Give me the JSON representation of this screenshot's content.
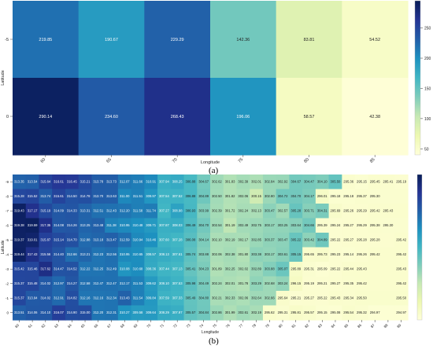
{
  "panel_labels": [
    "(a)",
    "(b)"
  ],
  "chart_data": [
    {
      "type": "heatmap",
      "title": "",
      "xlabel": "Longitude",
      "ylabel": "Latitude",
      "x_categories": [
        "60",
        "65",
        "70",
        "75",
        "80",
        "85"
      ],
      "y_categories": [
        "-5",
        "0"
      ],
      "values": [
        [
          219.85,
          190.67,
          229.29,
          142.36,
          83.81,
          54.52
        ],
        [
          290.14,
          234.6,
          268.43,
          196.06,
          58.57,
          42.38
        ]
      ],
      "value_labels": [
        [
          "219.85",
          "190.67",
          "229.29",
          "142.36",
          "83.81",
          "54.52"
        ],
        [
          "290.14",
          "234.60",
          "268.43",
          "196.06",
          "58.57",
          "42.38"
        ]
      ],
      "color_range": [
        40,
        295
      ],
      "colorbar_ticks": [
        "50",
        "100",
        "150",
        "200",
        "250"
      ],
      "colormap": [
        "#ffffd9",
        "#edf8b1",
        "#c7e9b4",
        "#7fcdbb",
        "#41b6c4",
        "#1d91c0",
        "#225ea8",
        "#253494",
        "#081d58"
      ]
    },
    {
      "type": "heatmap",
      "title": "",
      "xlabel": "Longitude",
      "ylabel": "Latitude",
      "x_categories": [
        "60",
        "61",
        "62",
        "63",
        "64",
        "65",
        "66",
        "67",
        "68",
        "69",
        "70",
        "71",
        "72",
        "73",
        "74",
        "75",
        "76",
        "77",
        "78",
        "79",
        "80",
        "81",
        "82",
        "83",
        "84",
        "85",
        "86",
        "87",
        "88",
        "89"
      ],
      "y_categories": [
        "-9",
        "-8",
        "-7",
        "-6",
        "-5",
        "-4",
        "-3",
        "-2",
        "-1",
        "0"
      ],
      "values": [
        [
          313.35,
          313.54,
          315.64,
          316.61,
          316.45,
          315.21,
          313.78,
          313.73,
          312.07,
          311.66,
          310.91,
          307.94,
          308.25,
          306.88,
          304.67,
          302.62,
          301.83,
          302.39,
          302.01,
          302.84,
          302.92,
          304.67,
          304.47,
          304.1,
          305.5,
          295.36,
          295.15,
          295.45,
          295.41,
          295.19
        ],
        [
          315.28,
          315.52,
          313.74,
          315.61,
          314.5,
          314.78,
          313.7,
          313.63,
          311.0,
          311.51,
          309.97,
          307.54,
          307.52,
          306.88,
          304.89,
          302.5,
          301.82,
          302.06,
          300.15,
          302.8,
          304.72,
          304.7,
          304.17,
          296.01,
          295.18,
          295.18,
          295.37,
          295.3,
          295.3,
          295.3
        ],
        [
          319.43,
          317.17,
          315.19,
          314.09,
          314.33,
          313.31,
          312.51,
          312.43,
          312.2,
          311.58,
          311.74,
          307.27,
          308.98,
          306.93,
          303.99,
          302.39,
          301.72,
          302.24,
          302.13,
          303.47,
          302.57,
          305.28,
          303.71,
          304.31,
          295.69,
          295.26,
          295.29,
          295.42,
          295.43,
          295.42
        ],
        [
          319.38,
          319.59,
          317.35,
          314.08,
          314.26,
          313.25,
          313.48,
          311.38,
          310.95,
          310.48,
          309.71,
          307.87,
          308.03,
          306.49,
          304.7,
          302.54,
          301.19,
          302.49,
          302.75,
          303.17,
          303.25,
          303.64,
          304.66,
          295.39,
          295.24,
          295.27,
          295.29,
          295.38,
          295.3,
          295.3
        ],
        [
          319.37,
          319.01,
          315.87,
          315.14,
          314.7,
          312.88,
          313.18,
          313.47,
          312.59,
          310.94,
          310.46,
          307.6,
          307.28,
          306.08,
          304.14,
          302.1,
          302.19,
          302.17,
          302.85,
          303.37,
          303.47,
          305.22,
          303.42,
          304.89,
          295.22,
          295.27,
          295.28,
          295.28,
          295.28,
          295.42
        ],
        [
          319.44,
          317.43,
          315.56,
          314.4,
          312.66,
          313.21,
          312.23,
          312.56,
          310.95,
          310.65,
          308.57,
          308.13,
          307.61,
          305.74,
          303.88,
          302.06,
          302.38,
          301.8,
          303.38,
          303.17,
          303.61,
          305.15,
          295.65,
          295.73,
          295.23,
          295.14,
          295.26,
          295.42,
          295.42,
          295.42
        ],
        [
          315.42,
          315.46,
          317.62,
          314.47,
          314.52,
          312.22,
          312.25,
          312.49,
          310.08,
          310.68,
          308.36,
          307.44,
          307.13,
          305.41,
          304.23,
          301.89,
          302.25,
          302.02,
          302.89,
          303.88,
          305.07,
          295.89,
          295.31,
          295.09,
          295.22,
          295.44,
          295.43,
          295.43,
          295.43,
          295.43
        ],
        [
          315.37,
          315.48,
          314.02,
          312.97,
          314.27,
          312.58,
          312.47,
          312.47,
          312.17,
          311.53,
          309.62,
          308.1,
          307.53,
          305.98,
          304.49,
          302.24,
          302.01,
          301.78,
          303.29,
          302.68,
          303.24,
          296.15,
          295.19,
          295.21,
          295.27,
          295.35,
          295.42,
          295.42,
          295.42,
          295.42
        ],
        [
          315.37,
          313.94,
          314.02,
          312.91,
          314.82,
          312.16,
          312.16,
          312.34,
          313.43,
          311.54,
          309.84,
          307.59,
          307.33,
          305.49,
          304.8,
          302.21,
          302.33,
          302.06,
          302.64,
          302.66,
          295.64,
          295.21,
          295.27,
          295.22,
          295.43,
          295.34,
          295.5,
          295.5,
          295.5,
          295.5
        ],
        [
          313.51,
          314.06,
          314.1,
          316.07,
          314.9,
          315.0,
          312.2,
          312.31,
          310.27,
          309.58,
          309.64,
          308.29,
          307.97,
          305.57,
          304.84,
          302.86,
          301.99,
          302.61,
          302.19,
          295.62,
          295.31,
          295.81,
          295.57,
          295.15,
          295.08,
          295.54,
          295.32,
          294.97,
          294.97,
          294.97
        ]
      ],
      "value_labels": [
        [
          "313.35",
          "313.54",
          "315.64",
          "316.61",
          "316.45",
          "315.21",
          "313.78",
          "313.73",
          "312.07",
          "311.66",
          "310.91",
          "307.94",
          "308.25",
          "306.88",
          "304.67",
          "302.62",
          "301.83",
          "302.39",
          "302.01",
          "302.84",
          "302.92",
          "304.67",
          "304.47",
          "304.10",
          "305.50",
          "295.36",
          "295.15",
          "295.45",
          "295.41",
          "295.19"
        ],
        [
          "315.28",
          "315.52",
          "313.74",
          "315.61",
          "314.50",
          "314.78",
          "313.70",
          "313.63",
          "311.00",
          "311.51",
          "309.97",
          "307.54",
          "307.52",
          "306.88",
          "304.89",
          "302.50",
          "301.82",
          "302.06",
          "300.15",
          "302.80",
          "304.72",
          "304.70",
          "304.17",
          "296.01",
          "295.18",
          "295.18",
          "295.37",
          "295.30",
          "",
          ""
        ],
        [
          "319.43",
          "317.17",
          "315.19",
          "314.09",
          "314.33",
          "313.31",
          "312.51",
          "312.43",
          "312.20",
          "311.58",
          "311.74",
          "307.27",
          "308.98",
          "306.93",
          "303.99",
          "302.39",
          "301.72",
          "302.24",
          "302.13",
          "303.47",
          "302.57",
          "305.28",
          "303.71",
          "304.31",
          "295.69",
          "295.26",
          "295.29",
          "295.42",
          "295.43",
          ""
        ],
        [
          "319.38",
          "319.59",
          "317.35",
          "314.08",
          "314.26",
          "313.25",
          "313.48",
          "311.38",
          "310.95",
          "310.48",
          "309.71",
          "307.87",
          "308.03",
          "306.49",
          "304.70",
          "302.54",
          "301.19",
          "302.49",
          "302.75",
          "303.17",
          "303.25",
          "303.64",
          "304.66",
          "295.39",
          "295.24",
          "295.27",
          "295.29",
          "295.38",
          "295.30",
          ""
        ],
        [
          "319.37",
          "319.01",
          "315.87",
          "315.14",
          "314.70",
          "312.88",
          "313.18",
          "313.47",
          "312.59",
          "310.94",
          "310.46",
          "307.60",
          "307.28",
          "306.08",
          "304.14",
          "302.10",
          "302.19",
          "302.17",
          "302.85",
          "303.37",
          "303.47",
          "305.22",
          "303.42",
          "304.89",
          "295.22",
          "295.27",
          "295.28",
          "295.28",
          "",
          "295.42"
        ],
        [
          "319.44",
          "317.43",
          "315.56",
          "314.40",
          "312.66",
          "313.21",
          "312.23",
          "312.56",
          "310.95",
          "310.65",
          "308.57",
          "308.13",
          "307.61",
          "305.74",
          "303.88",
          "302.06",
          "302.38",
          "301.80",
          "303.38",
          "303.17",
          "303.61",
          "305.15",
          "295.65",
          "295.73",
          "295.23",
          "295.14",
          "295.26",
          "295.42",
          "",
          "295.42"
        ],
        [
          "315.42",
          "315.46",
          "317.62",
          "314.47",
          "314.52",
          "312.22",
          "312.25",
          "312.49",
          "310.08",
          "310.68",
          "308.36",
          "307.44",
          "307.13",
          "305.41",
          "304.23",
          "301.89",
          "302.25",
          "302.02",
          "302.89",
          "303.88",
          "305.07",
          "295.89",
          "295.31",
          "295.09",
          "295.22",
          "295.44",
          "295.43",
          "",
          "",
          "295.43"
        ],
        [
          "315.37",
          "315.48",
          "314.02",
          "312.97",
          "314.27",
          "312.58",
          "312.47",
          "312.47",
          "312.17",
          "311.53",
          "309.62",
          "308.10",
          "307.53",
          "305.98",
          "304.49",
          "302.24",
          "302.01",
          "301.78",
          "303.29",
          "302.68",
          "303.24",
          "296.15",
          "295.19",
          "295.21",
          "295.27",
          "295.35",
          "295.42",
          "",
          "",
          "295.42"
        ],
        [
          "315.37",
          "313.94",
          "314.02",
          "312.91",
          "314.82",
          "312.16",
          "312.16",
          "312.34",
          "313.43",
          "311.54",
          "309.84",
          "307.59",
          "307.33",
          "305.49",
          "304.80",
          "302.21",
          "302.33",
          "302.06",
          "302.64",
          "302.66",
          "295.64",
          "295.21",
          "295.27",
          "295.22",
          "295.43",
          "295.34",
          "295.50",
          "",
          "",
          "295.50"
        ],
        [
          "313.51",
          "314.06",
          "314.10",
          "316.07",
          "314.90",
          "315.00",
          "312.20",
          "312.31",
          "310.27",
          "309.58",
          "309.64",
          "308.29",
          "307.97",
          "305.57",
          "304.84",
          "302.86",
          "301.99",
          "302.61",
          "302.19",
          "295.62",
          "295.31",
          "295.81",
          "295.57",
          "295.15",
          "295.08",
          "295.54",
          "295.32",
          "294.97",
          "",
          "294.97"
        ]
      ],
      "color_range": [
        294.5,
        320
      ],
      "colormap": [
        "#ffffd9",
        "#edf8b1",
        "#c7e9b4",
        "#7fcdbb",
        "#41b6c4",
        "#1d91c0",
        "#225ea8",
        "#253494",
        "#081d58"
      ]
    }
  ]
}
